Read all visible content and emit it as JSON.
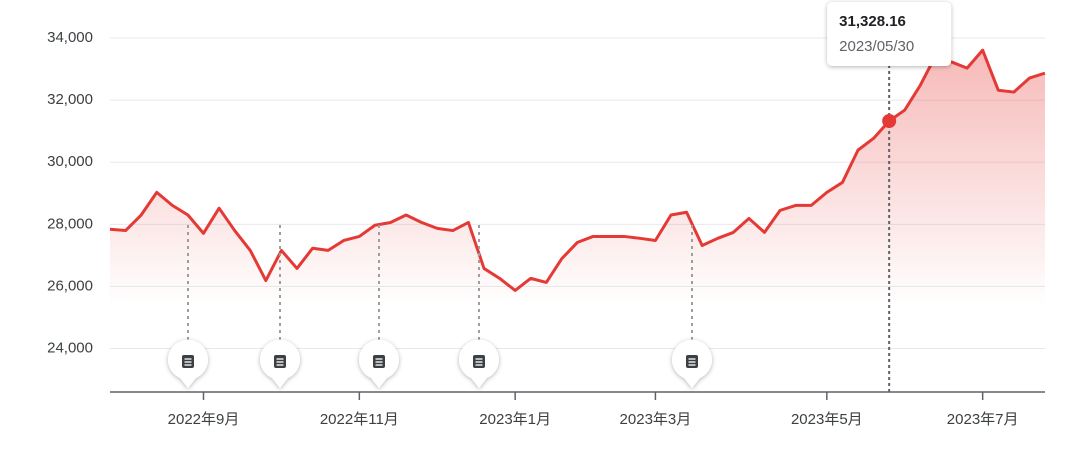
{
  "chart_data": {
    "type": "line",
    "categories": [
      null,
      null,
      null,
      null,
      null,
      null,
      "2022年9月",
      null,
      null,
      null,
      null,
      null,
      null,
      null,
      null,
      null,
      "2022年11月",
      null,
      null,
      null,
      null,
      null,
      null,
      null,
      null,
      null,
      "2023年1月",
      null,
      null,
      null,
      null,
      null,
      null,
      null,
      null,
      "2023年3月",
      null,
      null,
      null,
      null,
      null,
      null,
      null,
      null,
      null,
      null,
      "2023年5月",
      null,
      null,
      null,
      null,
      null,
      null,
      null,
      null,
      null,
      "2023年7月",
      null,
      null,
      null,
      null
    ],
    "series": [
      {
        "color": "#e53935",
        "values": [
          27840,
          27800,
          28300,
          29030,
          28610,
          28300,
          27710,
          28520,
          27800,
          27160,
          26190,
          27160,
          26580,
          27230,
          27160,
          27480,
          27610,
          27970,
          28060,
          28300,
          28060,
          27870,
          27800,
          28060,
          26580,
          26260,
          25870,
          26260,
          26130,
          26900,
          27420,
          27610,
          27610,
          27610,
          27550,
          27480,
          28300,
          28390,
          27320,
          27550,
          27740,
          28190,
          27740,
          28450,
          28610,
          28610,
          29030,
          29350,
          30390,
          30770,
          31328.16,
          31680,
          32480,
          33450,
          33230,
          33030,
          33610,
          32320,
          32260,
          32710,
          32870
        ]
      }
    ],
    "ylim": [
      22600,
      35000
    ],
    "yticks": [
      {
        "value": 24000,
        "label": "24,000"
      },
      {
        "value": 26000,
        "label": "26,000"
      },
      {
        "value": 28000,
        "label": "28,000"
      },
      {
        "value": 30000,
        "label": "30,000"
      },
      {
        "value": 32000,
        "label": "32,000"
      },
      {
        "value": 34000,
        "label": "34,000"
      }
    ],
    "grid": true,
    "tooltip": {
      "label": "31,328.16",
      "date": "2023/05/30"
    }
  }
}
